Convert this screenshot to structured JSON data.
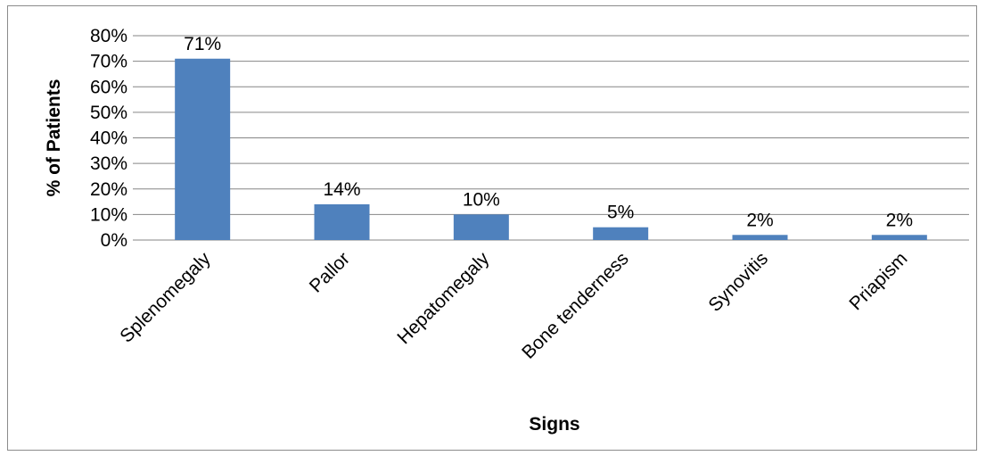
{
  "chart_data": {
    "type": "bar",
    "title": "",
    "xlabel": "Signs",
    "ylabel": "% of Patients",
    "categories": [
      "Splenomegaly",
      "Pallor",
      "Hepatomegaly",
      "Bone tenderness",
      "Synovitis",
      "Priapism"
    ],
    "values": [
      71,
      14,
      10,
      5,
      2,
      2
    ],
    "data_labels": [
      "71%",
      "14%",
      "10%",
      "5%",
      "2%",
      "2%"
    ],
    "ylim": [
      0,
      80
    ],
    "yticks": [
      0,
      10,
      20,
      30,
      40,
      50,
      60,
      70,
      80
    ],
    "ytick_labels": [
      "0%",
      "10%",
      "20%",
      "30%",
      "40%",
      "50%",
      "60%",
      "70%",
      "80%"
    ],
    "grid": "horizontal",
    "legend": "none",
    "bar_color": "#4f81bd",
    "grid_color": "#868686"
  }
}
